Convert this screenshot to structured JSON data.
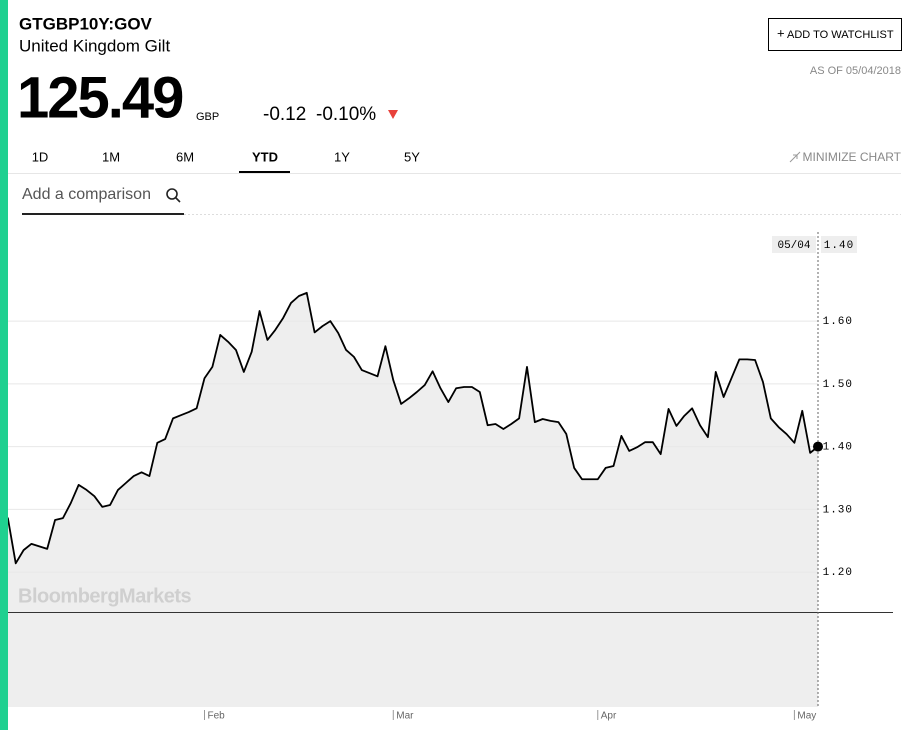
{
  "header": {
    "ticker": "GTGBP10Y:GOV",
    "name": "United Kingdom Gilt",
    "price": "125.49",
    "currency": "GBP",
    "change": "-0.12",
    "change_percent": "-0.10%",
    "watchlist_button": "ADD TO WATCHLIST",
    "as_of": "AS OF 05/04/2018"
  },
  "tabs": [
    "1D",
    "1M",
    "6M",
    "YTD",
    "1Y",
    "5Y"
  ],
  "active_tab": "YTD",
  "minimize": "MINIMIZE CHART",
  "comparison_placeholder": "Add a comparison",
  "chart_data": {
    "type": "line",
    "color": "#000000",
    "fill": "#eeeeee",
    "watermark": "BloombergMarkets",
    "crosshair": {
      "x_label": "05/04",
      "y_label": "1.40"
    },
    "categories": [
      null,
      null,
      null,
      null,
      null,
      null,
      null,
      null,
      null,
      null,
      null,
      null,
      null,
      null,
      null,
      null,
      null,
      null,
      null,
      null,
      null,
      null,
      null,
      null,
      null,
      null,
      "Feb",
      null,
      null,
      null,
      null,
      null,
      null,
      null,
      null,
      null,
      null,
      null,
      null,
      null,
      null,
      null,
      null,
      null,
      null,
      null,
      null,
      null,
      null,
      null,
      "Mar",
      null,
      null,
      null,
      null,
      null,
      null,
      null,
      null,
      null,
      null,
      null,
      null,
      null,
      null,
      null,
      null,
      null,
      null,
      null,
      null,
      null,
      null,
      null,
      null,
      null,
      "Apr",
      null,
      null,
      null,
      null,
      null,
      null,
      null,
      null,
      null,
      null,
      null,
      null,
      null,
      null,
      null,
      null,
      null,
      null,
      null,
      null,
      null,
      null,
      null,
      null,
      "May",
      null,
      null,
      null
    ],
    "values": [
      1.19,
      1.286,
      1.214,
      1.235,
      1.245,
      1.241,
      1.237,
      1.283,
      1.286,
      1.31,
      1.339,
      1.331,
      1.321,
      1.304,
      1.307,
      1.331,
      1.342,
      1.353,
      1.359,
      1.353,
      1.406,
      1.412,
      1.445,
      1.45,
      1.455,
      1.461,
      1.509,
      1.527,
      1.578,
      1.567,
      1.554,
      1.519,
      1.551,
      1.616,
      1.57,
      1.586,
      1.605,
      1.629,
      1.64,
      1.645,
      1.582,
      1.592,
      1.6,
      1.581,
      1.554,
      1.543,
      1.522,
      1.517,
      1.512,
      1.56,
      1.506,
      1.468,
      1.477,
      1.487,
      1.498,
      1.52,
      1.493,
      1.471,
      1.493,
      1.495,
      1.495,
      1.487,
      1.434,
      1.436,
      1.428,
      1.436,
      1.445,
      1.527,
      1.439,
      1.444,
      1.441,
      1.439,
      1.42,
      1.366,
      1.348,
      1.348,
      1.348,
      1.366,
      1.369,
      1.417,
      1.393,
      1.399,
      1.407,
      1.407,
      1.388,
      1.46,
      1.433,
      1.449,
      1.461,
      1.434,
      1.415,
      1.519,
      1.479,
      1.509,
      1.539,
      1.539,
      1.538,
      1.503,
      1.445,
      1.431,
      1.42,
      1.406,
      1.457,
      1.39,
      1.4
    ],
    "ylim": [
      0.985,
      1.742
    ],
    "yticks": [
      {
        "value": 1.2,
        "label": "1.20"
      },
      {
        "value": 1.3,
        "label": "1.30"
      },
      {
        "value": 1.4,
        "label": "1.40"
      },
      {
        "value": 1.5,
        "label": "1.50"
      },
      {
        "value": 1.6,
        "label": "1.60"
      }
    ],
    "grid": true
  }
}
